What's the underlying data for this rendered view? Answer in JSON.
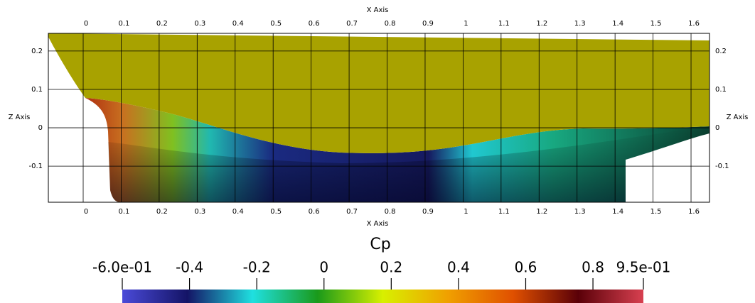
{
  "chart_data": {
    "type": "surface",
    "x_axis_title": "X Axis",
    "z_axis_title": "Z Axis",
    "xlim": [
      -0.0917,
      1.6486
    ],
    "zlim": [
      -0.194,
      0.246
    ],
    "xticks": [
      0,
      0.1,
      0.2,
      0.3,
      0.4,
      0.5,
      0.6,
      0.7,
      0.8,
      0.9,
      1,
      1.1,
      1.2,
      1.3,
      1.4,
      1.5,
      1.6
    ],
    "zticks": [
      0.2,
      0.1,
      0,
      -0.1
    ],
    "colorbar": {
      "title": "Cp",
      "lim": [
        -0.6,
        0.95
      ],
      "ticks": [
        {
          "value": -0.6,
          "label": "-6.0e-01"
        },
        -0.4,
        -0.2,
        0,
        0.2,
        0.4,
        0.6,
        0.8,
        {
          "value": 0.95,
          "label": "9.5e-01"
        }
      ],
      "colormap": [
        "#4a4ad8",
        "#141466",
        "#1fe0e0",
        "#1a9a1a",
        "#d8f000",
        "#f0a000",
        "#e05000",
        "#5a0008",
        "#d84050"
      ]
    }
  }
}
